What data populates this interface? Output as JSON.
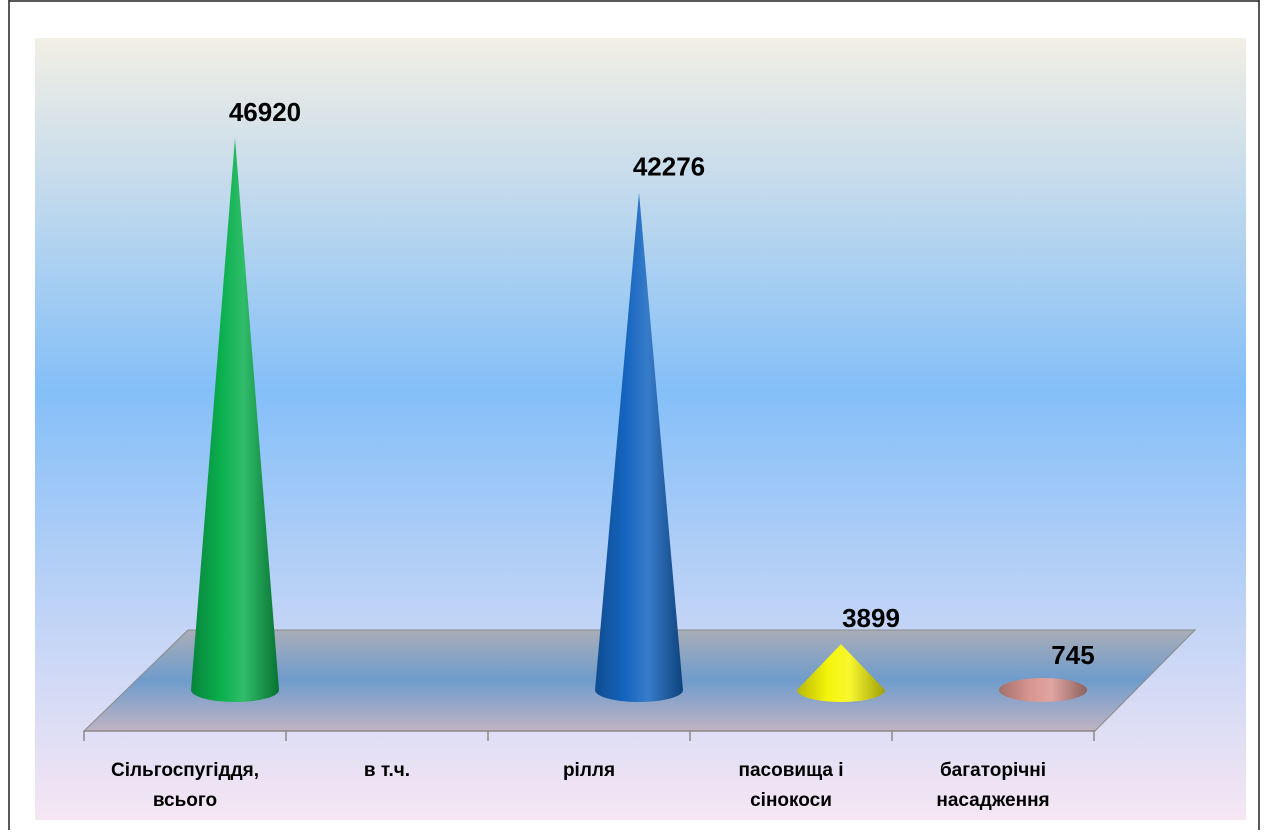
{
  "chart_data": {
    "type": "bar",
    "bar_shape": "cone-3d",
    "categories": [
      [
        "Сільгоспугіддя,",
        "всього"
      ],
      [
        "в т.ч."
      ],
      [
        "рілля"
      ],
      [
        "пасовища і",
        "сінокоси"
      ],
      [
        "багаторічні",
        "насадження"
      ]
    ],
    "values": [
      46920,
      null,
      42276,
      3899,
      745
    ],
    "value_labels": [
      "46920",
      "",
      "42276",
      "3899",
      "745"
    ],
    "colors": [
      "#0bb04e",
      null,
      "#1565c0",
      "#f5f50a",
      "#d99590"
    ],
    "background": {
      "top": "#f2efe4",
      "middle": "#84bff8",
      "bottom": "#f6e6f4"
    },
    "floor_color": "#9aa3b4"
  }
}
